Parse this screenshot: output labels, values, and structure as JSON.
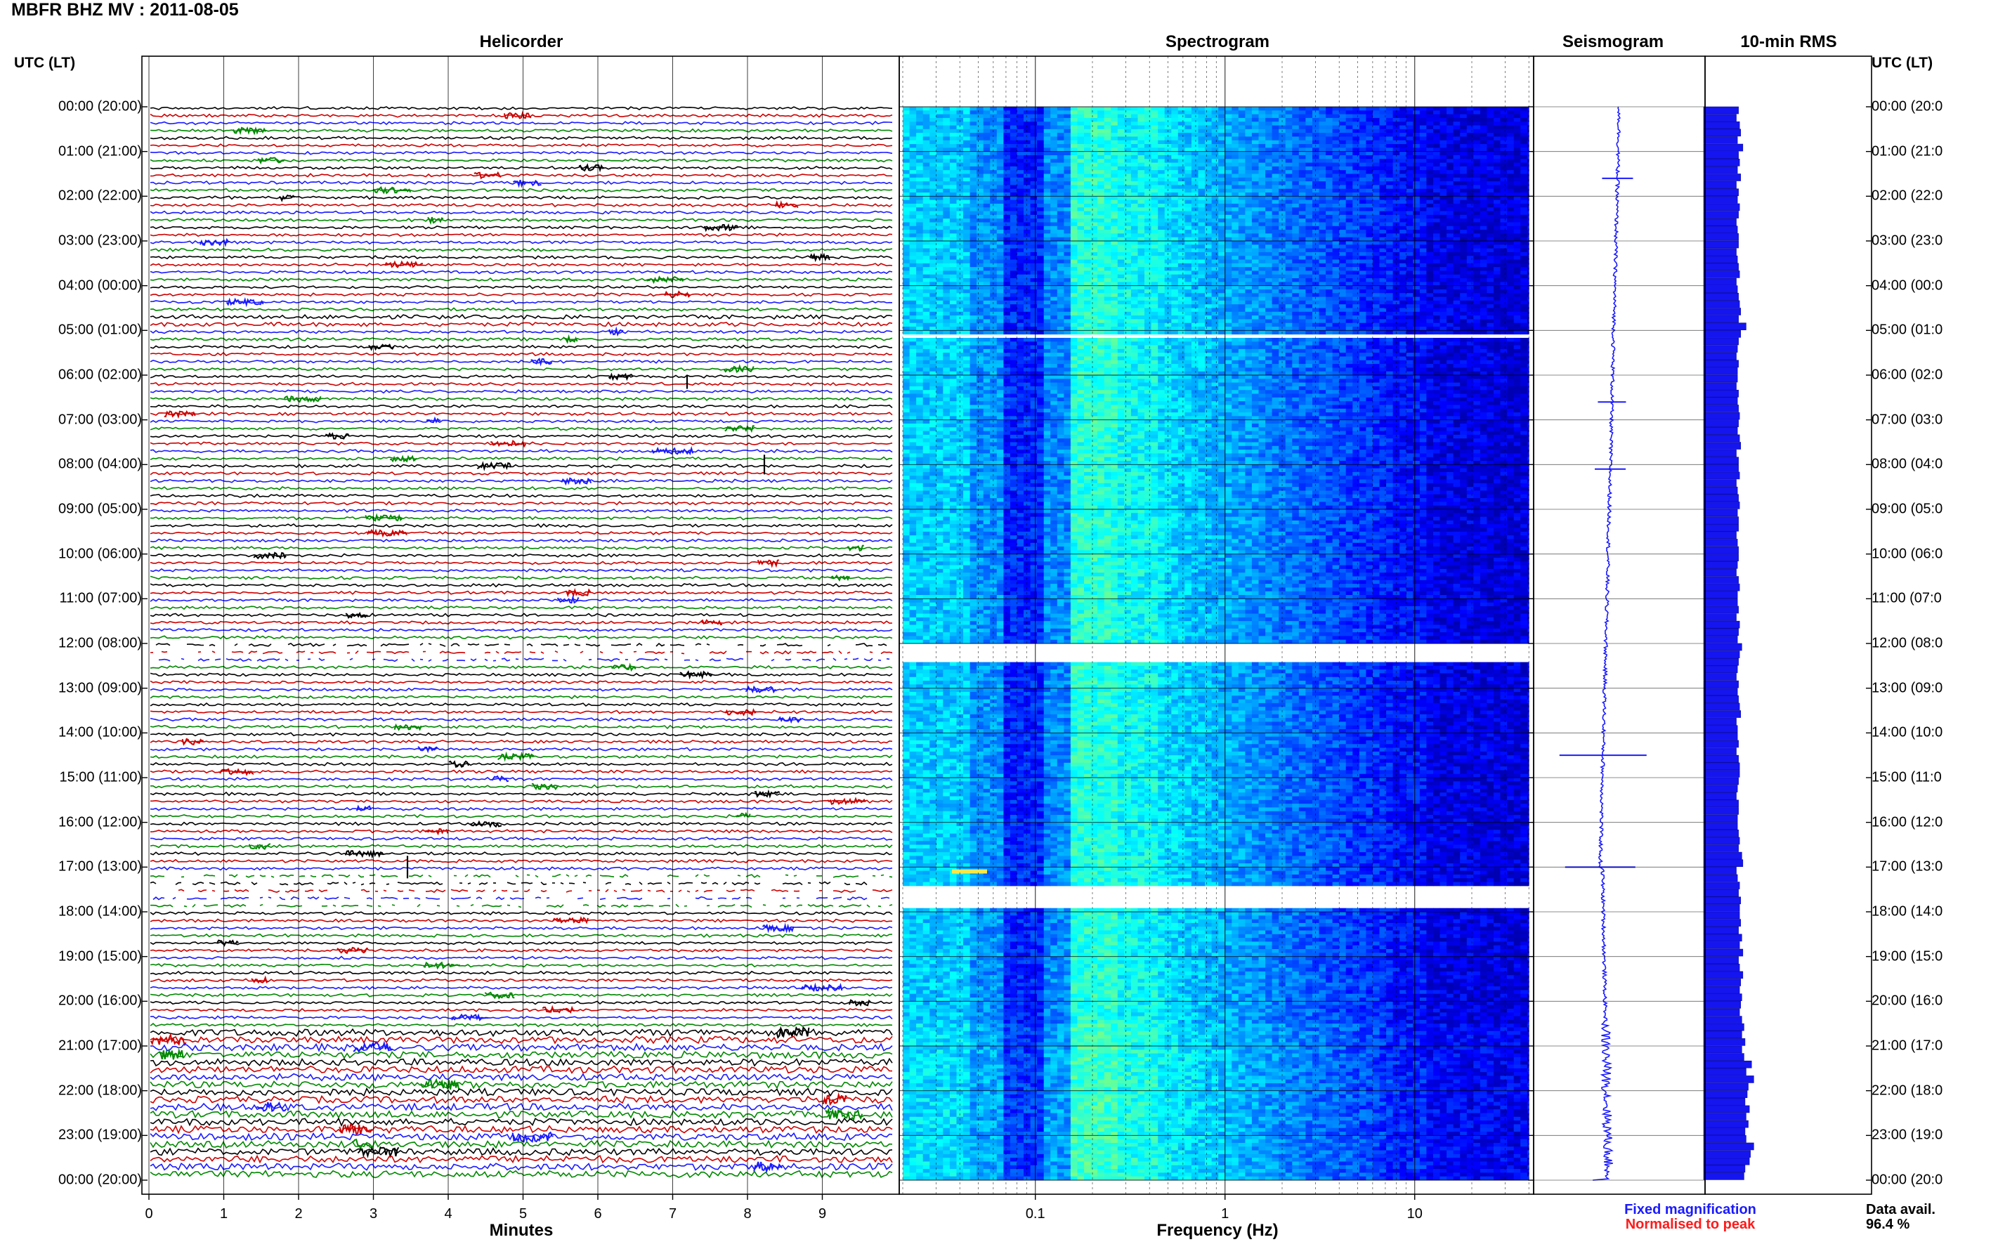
{
  "header": {
    "title": "MBFR BHZ MV : 2011-08-05"
  },
  "panels": {
    "helicorder": "Helicorder",
    "spectrogram": "Spectrogram",
    "seismogram": "Seismogram",
    "rms": "10-min RMS"
  },
  "axes": {
    "left_label": "UTC (LT)",
    "right_label": "UTC (LT)",
    "time_labels": [
      "00:00 (20:00)",
      "01:00 (21:00)",
      "02:00 (22:00)",
      "03:00 (23:00)",
      "04:00 (00:00)",
      "05:00 (01:00)",
      "06:00 (02:00)",
      "07:00 (03:00)",
      "08:00 (04:00)",
      "09:00 (05:00)",
      "10:00 (06:00)",
      "11:00 (07:00)",
      "12:00 (08:00)",
      "13:00 (09:00)",
      "14:00 (10:00)",
      "15:00 (11:00)",
      "16:00 (12:00)",
      "17:00 (13:00)",
      "18:00 (14:00)",
      "19:00 (15:00)",
      "20:00 (16:00)",
      "21:00 (17:00)",
      "22:00 (18:00)",
      "23:00 (19:00)",
      "00:00 (20:00)"
    ],
    "time_labels_right": [
      "00:00 (20:0",
      "01:00 (21:0",
      "02:00 (22:0",
      "03:00 (23:0",
      "04:00 (00:0",
      "05:00 (01:0",
      "06:00 (02:0",
      "07:00 (03:0",
      "08:00 (04:0",
      "09:00 (05:0",
      "10:00 (06:0",
      "11:00 (07:0",
      "12:00 (08:0",
      "13:00 (09:0",
      "14:00 (10:0",
      "15:00 (11:0",
      "16:00 (12:0",
      "17:00 (13:0",
      "18:00 (14:0",
      "19:00 (15:0",
      "20:00 (16:0",
      "21:00 (17:0",
      "22:00 (18:0",
      "23:00 (19:0",
      "00:00 (20:0"
    ],
    "minutes_ticks": [
      "0",
      "1",
      "2",
      "3",
      "4",
      "5",
      "6",
      "7",
      "8",
      "9"
    ],
    "minutes_label": "Minutes",
    "freq_ticks": [
      "0.1",
      "1",
      "10"
    ],
    "freq_label": "Frequency (Hz)"
  },
  "legend": {
    "fixed": "Fixed magnification",
    "normalised": "Normalised to peak",
    "fixed_color": "#1a1aff",
    "normalised_color": "#ff1a1a"
  },
  "availability": {
    "label": "Data avail.",
    "value": "96.4 %"
  },
  "colors": {
    "trace_cycle": [
      "#000000",
      "#cc0000",
      "#1a1aff",
      "#008800"
    ],
    "seismogram": "#1a1aff",
    "rms": "#1515f0"
  },
  "chart_data": [
    {
      "type": "line",
      "name": "helicorder",
      "xlabel": "Minutes",
      "xlim": [
        0,
        10
      ],
      "lines_per_hour": 6,
      "minutes_per_line": 10,
      "data_gaps_hours": [
        [
          12.0,
          12.1
        ],
        [
          17.1,
          17.6
        ]
      ]
    },
    {
      "type": "heatmap",
      "name": "spectrogram",
      "xlabel": "Frequency (Hz)",
      "xscale": "log",
      "xlim": [
        0.02,
        50
      ],
      "ylim_hours": [
        0,
        24
      ],
      "gaps_hours": [
        [
          5.1,
          5.2
        ],
        [
          12.0,
          12.4
        ],
        [
          17.4,
          17.9
        ]
      ]
    },
    {
      "type": "line",
      "name": "seismogram",
      "ylim_hours": [
        0,
        24
      ],
      "spikes_hours": [
        1.6,
        6.6,
        8.1,
        14.5,
        17.0
      ]
    },
    {
      "type": "bar",
      "name": "10-min RMS",
      "ylim_hours": [
        0,
        24
      ],
      "bin_minutes": 10,
      "values": [
        3.2,
        3.0,
        3.3,
        3.4,
        3.1,
        3.6,
        3.2,
        3.3,
        3.1,
        3.4,
        3.0,
        3.2,
        3.1,
        3.3,
        3.2,
        3.0,
        3.1,
        3.2,
        3.2,
        3.0,
        3.1,
        3.2,
        3.3,
        3.0,
        3.1,
        3.2,
        3.3,
        3.4,
        3.2,
        3.9,
        3.4,
        3.2,
        3.1,
        3.0,
        3.2,
        3.1,
        3.1,
        3.0,
        3.2,
        3.1,
        3.2,
        3.3,
        3.2,
        3.1,
        3.3,
        3.4,
        3.0,
        3.2,
        3.2,
        3.3,
        3.0,
        3.1,
        3.2,
        3.3,
        3.1,
        3.2,
        3.2,
        3.0,
        3.1,
        3.2,
        3.2,
        3.1,
        3.0,
        3.2,
        3.3,
        3.1,
        3.1,
        3.2,
        3.0,
        3.3,
        3.2,
        3.1,
        3.5,
        3.3,
        3.2,
        3.1,
        3.0,
        3.2,
        3.1,
        3.2,
        3.3,
        3.4,
        3.0,
        3.1,
        3.1,
        3.2,
        3.0,
        3.2,
        3.3,
        3.3,
        3.2,
        3.1,
        3.0,
        3.2,
        3.2,
        3.1,
        3.1,
        3.2,
        3.3,
        3.2,
        3.5,
        3.6,
        3.0,
        3.1,
        3.3,
        3.2,
        3.4,
        3.3,
        3.3,
        3.4,
        3.2,
        3.5,
        3.3,
        3.6,
        3.2,
        3.3,
        3.6,
        3.4,
        3.3,
        3.5,
        3.4,
        3.3,
        3.5,
        3.7,
        3.5,
        3.8,
        3.5,
        3.7,
        4.4,
        3.9,
        4.6,
        4.1,
        4.0,
        3.8,
        4.2,
        3.9,
        4.1,
        3.8,
        3.9,
        4.6,
        4.3,
        4.2,
        3.8,
        3.7
      ]
    }
  ]
}
